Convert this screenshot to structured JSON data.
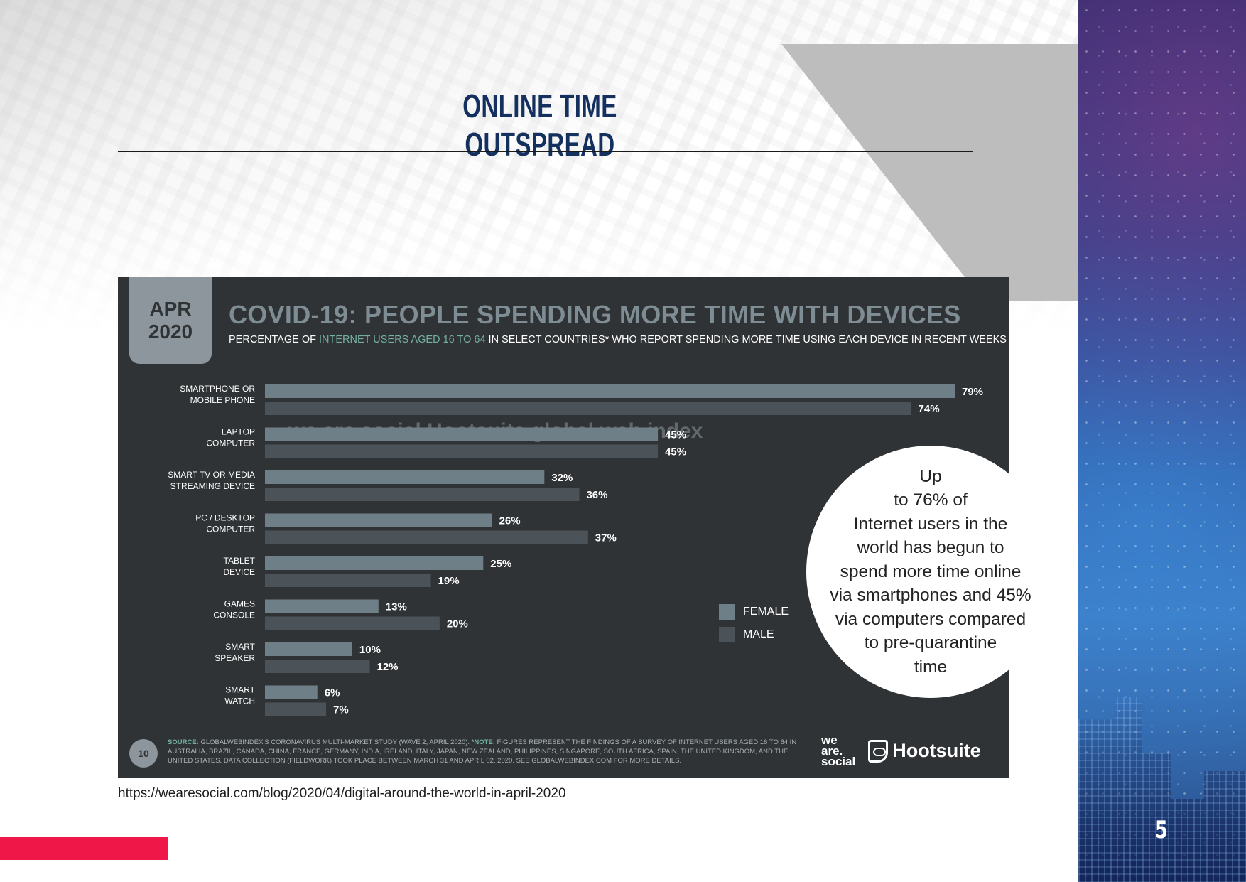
{
  "slide": {
    "title": "ONLINE TIME OUTSPREAD",
    "page_number": "5",
    "source_url": "https://wearesocial.com/blog/2020/04/digital-around-the-world-in-april-2020",
    "callout": "Up\nto 76% of\nInternet users in the\nworld has begun to\nspend more time online\nvia smartphones and 45%\nvia computers compared\nto pre-quarantine\ntime"
  },
  "infographic": {
    "date_month": "APR",
    "date_year": "2020",
    "title": "COVID-19: PEOPLE SPENDING MORE TIME WITH DEVICES",
    "subtitle_pre": "PERCENTAGE OF ",
    "subtitle_highlight": "INTERNET USERS AGED 16 TO 64",
    "subtitle_post": " IN SELECT COUNTRIES* WHO REPORT SPENDING MORE TIME USING EACH DEVICE IN RECENT WEEKS",
    "watermark": "we are social   Hootsuite   global web index",
    "page_badge": "10",
    "footer_source_label": "SOURCE:",
    "footer_source_text": " GLOBALWEBINDEX'S CORONAVIRUS MULTI-MARKET STUDY (WAVE 2, APRIL 2020). ",
    "footer_note_label": "*NOTE:",
    "footer_note_text": " FIGURES REPRESENT THE FINDINGS OF A SURVEY OF INTERNET USERS AGED 16 TO 64 IN AUSTRALIA, BRAZIL, CANADA, CHINA, FRANCE, GERMANY, INDIA, IRELAND, ITALY, JAPAN, NEW ZEALAND, PHILIPPINES, SINGAPORE, SOUTH AFRICA, SPAIN, THE UNITED KINGDOM, AND THE UNITED STATES. DATA COLLECTION (FIELDWORK) TOOK PLACE BETWEEN MARCH 31 AND APRIL 02, 2020. SEE GLOBALWEBINDEX.COM FOR MORE DETAILS.",
    "logo_was": "we\nare.\nsocial",
    "logo_hootsuite": "Hootsuite"
  },
  "colors": {
    "female": "#6f7f88",
    "male": "#4b5358",
    "card_bg": "#2f3335",
    "accent_red": "#ef1748",
    "title_navy": "#14305f"
  },
  "chart_data": {
    "type": "bar",
    "orientation": "horizontal",
    "categories": [
      "SMARTPHONE OR\nMOBILE PHONE",
      "LAPTOP\nCOMPUTER",
      "SMART TV OR MEDIA\nSTREAMING DEVICE",
      "PC / DESKTOP\nCOMPUTER",
      "TABLET\nDEVICE",
      "GAMES\nCONSOLE",
      "SMART\nSPEAKER",
      "SMART\nWATCH"
    ],
    "series": [
      {
        "name": "FEMALE",
        "values": [
          79,
          45,
          32,
          26,
          25,
          13,
          10,
          6
        ]
      },
      {
        "name": "MALE",
        "values": [
          74,
          45,
          36,
          37,
          19,
          20,
          12,
          7
        ]
      }
    ],
    "value_suffix": "%",
    "xlim": [
      0,
      79
    ],
    "legend": "bottom-right",
    "grid": false
  }
}
